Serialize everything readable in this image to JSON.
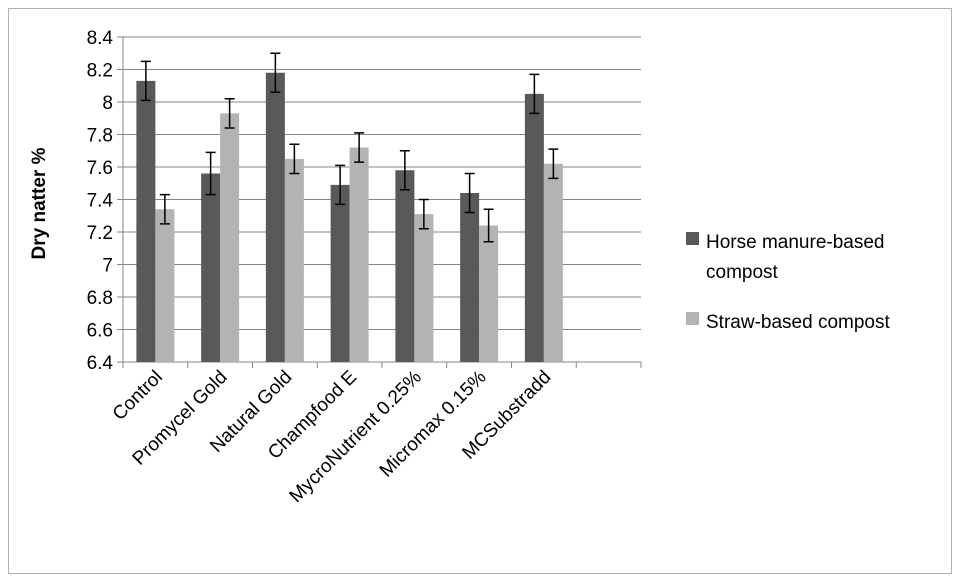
{
  "chart_data": {
    "type": "bar",
    "title": "",
    "xlabel": "",
    "ylabel": "Dry natter %",
    "ylim": [
      6.4,
      8.4
    ],
    "y_ticks": [
      "6.4",
      "6.6",
      "6.8",
      "7",
      "7.2",
      "7.4",
      "7.6",
      "7.8",
      "8",
      "8.2",
      "8.4"
    ],
    "grid": "horizontal",
    "legend_position": "right",
    "categories": [
      "Control",
      "Promycel Gold",
      "Natural Gold",
      "Champfood E",
      "MycroNutrient 0.25%",
      "Micromax 0.15%",
      "MCSubstradd",
      ""
    ],
    "series": [
      {
        "name": "Horse manure-based compost",
        "legend_lines": [
          "Horse manure-based",
          "compost"
        ],
        "color": "#595959",
        "values": [
          8.13,
          7.56,
          8.18,
          7.49,
          7.58,
          7.44,
          8.05,
          null
        ],
        "errors": [
          0.12,
          0.13,
          0.12,
          0.12,
          0.12,
          0.12,
          0.12,
          null
        ]
      },
      {
        "name": "Straw-based compost",
        "legend_lines": [
          "Straw-based compost"
        ],
        "color": "#b3b3b3",
        "values": [
          7.34,
          7.93,
          7.65,
          7.72,
          7.31,
          7.24,
          7.62,
          null
        ],
        "errors": [
          0.09,
          0.09,
          0.09,
          0.09,
          0.09,
          0.1,
          0.09,
          null
        ]
      }
    ]
  }
}
